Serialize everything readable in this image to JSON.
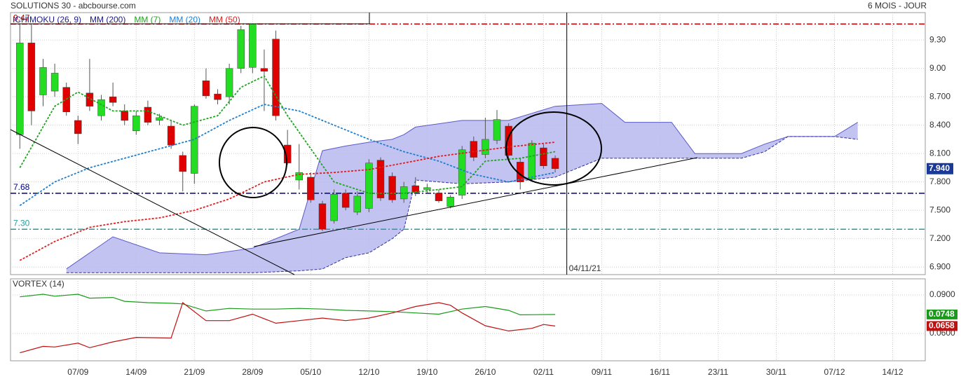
{
  "header": {
    "title": "SOLUTIONS 30 - abcbourse.com",
    "period": "6 MOIS - JOUR"
  },
  "chart_data": [
    {
      "type": "candlestick",
      "xlim": [
        -0.8,
        77.8
      ],
      "ylim": [
        6.82,
        9.59
      ],
      "yticks": [
        {
          "value": 6.9,
          "label": "6.900"
        },
        {
          "value": 7.2,
          "label": "7.200"
        },
        {
          "value": 7.5,
          "label": "7.500"
        },
        {
          "value": 7.8,
          "label": "7.800"
        },
        {
          "value": 8.1,
          "label": "8.100"
        },
        {
          "value": 8.4,
          "label": "8.400"
        },
        {
          "value": 8.7,
          "label": "8.700"
        },
        {
          "value": 9,
          "label": "9.00"
        },
        {
          "value": 9.3,
          "label": "9.30"
        }
      ],
      "grid": true,
      "up_color": "#22dd22",
      "down_color": "#e00000",
      "x": [
        0,
        1,
        2,
        3,
        4,
        5,
        6,
        7,
        8,
        9,
        10,
        11,
        12,
        13,
        14,
        15,
        16,
        17,
        18,
        19,
        20,
        21,
        22,
        23,
        24,
        25,
        26,
        27,
        28,
        29,
        30,
        31,
        32,
        33,
        34,
        35,
        36,
        37,
        38,
        39,
        40,
        41,
        42,
        43,
        44,
        45,
        46
      ],
      "open": [
        8.3,
        9.27,
        8.72,
        8.76,
        8.8,
        8.45,
        8.74,
        8.5,
        8.7,
        8.55,
        8.34,
        8.59,
        8.45,
        8.39,
        8.08,
        7.89,
        8.87,
        8.73,
        8.7,
        9.0,
        9.01,
        9.0,
        9.31,
        8.19,
        7.82,
        7.85,
        7.57,
        7.39,
        7.68,
        7.48,
        7.52,
        8.03,
        7.86,
        7.62,
        7.76,
        7.72,
        7.68,
        7.54,
        7.66,
        8.23,
        8.09,
        8.24,
        8.39,
        8.01,
        7.83,
        8.16,
        8.05
      ],
      "high": [
        9.47,
        9.47,
        9.1,
        9.05,
        8.85,
        8.5,
        9.1,
        8.72,
        8.85,
        8.62,
        8.55,
        8.66,
        8.52,
        8.45,
        8.12,
        8.62,
        9.0,
        8.78,
        9.05,
        9.45,
        9.47,
        9.2,
        9.4,
        8.35,
        8.2,
        7.9,
        7.6,
        7.72,
        7.72,
        7.7,
        8.04,
        8.06,
        7.9,
        7.8,
        7.85,
        7.78,
        7.72,
        7.66,
        8.18,
        8.28,
        8.48,
        8.56,
        8.42,
        8.05,
        8.24,
        8.2,
        8.08
      ],
      "low": [
        8.15,
        8.4,
        8.6,
        8.7,
        8.5,
        8.2,
        8.55,
        8.45,
        8.6,
        8.4,
        8.3,
        8.4,
        8.4,
        8.15,
        7.7,
        7.78,
        8.68,
        8.62,
        8.62,
        8.95,
        8.95,
        8.55,
        8.45,
        7.98,
        7.72,
        7.58,
        7.28,
        7.36,
        7.5,
        7.45,
        7.48,
        7.6,
        7.58,
        7.58,
        7.65,
        7.68,
        7.58,
        7.52,
        7.62,
        8.02,
        8.05,
        8.2,
        8.05,
        7.72,
        7.8,
        7.94,
        7.9
      ],
      "close": [
        9.27,
        8.55,
        9.01,
        8.95,
        8.54,
        8.31,
        8.6,
        8.67,
        8.64,
        8.45,
        8.5,
        8.43,
        8.48,
        8.19,
        7.91,
        8.6,
        8.71,
        8.67,
        9.0,
        9.41,
        9.47,
        8.97,
        8.5,
        8.0,
        7.9,
        7.61,
        7.3,
        7.67,
        7.53,
        7.65,
        8.0,
        7.63,
        7.61,
        7.75,
        7.69,
        7.74,
        7.6,
        7.64,
        8.14,
        8.06,
        8.25,
        8.46,
        8.08,
        7.8,
        8.21,
        7.97,
        7.94
      ],
      "last_label": "7.940",
      "last_color": "#1a3a9a",
      "cloud": {
        "name": "ICHIMOKU (26, 9)",
        "color": "#1a1a8c",
        "fill": "#b8b8f0",
        "x": [
          4,
          8,
          12,
          16,
          20,
          24,
          26,
          28,
          30,
          32,
          33,
          34,
          38,
          42,
          46,
          50,
          52,
          56,
          58,
          62,
          64,
          66,
          70,
          72
        ],
        "top": [
          6.88,
          7.22,
          7.05,
          7.03,
          7.1,
          7.3,
          8.13,
          8.18,
          8.22,
          8.25,
          8.3,
          8.38,
          8.45,
          8.45,
          8.6,
          8.63,
          8.43,
          8.43,
          8.1,
          8.1,
          8.2,
          8.28,
          8.28,
          8.43
        ],
        "bottom": [
          6.84,
          6.84,
          6.84,
          6.84,
          6.84,
          6.86,
          6.88,
          7.0,
          7.05,
          7.2,
          7.3,
          7.82,
          7.78,
          7.8,
          7.85,
          8.05,
          8.05,
          8.05,
          8.05,
          8.05,
          8.12,
          8.28,
          8.28,
          8.25
        ]
      },
      "legend_only": {
        "name": "MM (200)",
        "color": "#1a1a8c"
      },
      "series": [
        {
          "name": "MM (7)",
          "color": "#1fa51f",
          "x": [
            0,
            3,
            5,
            8,
            11,
            14,
            17,
            19,
            21,
            23,
            25,
            27,
            30,
            33,
            36,
            38,
            40,
            43,
            46
          ],
          "values": [
            7.95,
            8.6,
            8.75,
            8.55,
            8.55,
            8.4,
            8.5,
            8.8,
            8.92,
            8.5,
            8.15,
            7.8,
            7.68,
            7.68,
            7.72,
            7.75,
            8.02,
            8.05,
            8.12
          ]
        },
        {
          "name": "MM (20)",
          "color": "#1e7fd0",
          "x": [
            0,
            3,
            6,
            9,
            12,
            15,
            18,
            21,
            24,
            27,
            30,
            33,
            36,
            39,
            42,
            46
          ],
          "values": [
            7.55,
            7.8,
            7.95,
            8.05,
            8.15,
            8.25,
            8.45,
            8.62,
            8.55,
            8.4,
            8.25,
            8.12,
            8.02,
            7.88,
            7.8,
            7.9
          ]
        },
        {
          "name": "MM (50)",
          "color": "#e02020",
          "x": [
            0,
            3,
            6,
            9,
            12,
            15,
            18,
            21,
            24,
            27,
            30,
            33,
            36,
            39,
            42,
            46
          ],
          "values": [
            6.97,
            7.17,
            7.32,
            7.38,
            7.42,
            7.5,
            7.62,
            7.8,
            7.88,
            7.9,
            7.93,
            8.0,
            8.07,
            8.12,
            8.17,
            8.22
          ]
        }
      ],
      "hlines": [
        {
          "value": 9.47,
          "label": "9.47",
          "color": "#cc0000"
        },
        {
          "value": 7.68,
          "label": "7.68",
          "color": "#000080"
        },
        {
          "value": 7.3,
          "label": "7.30",
          "color": "#2a9aa0"
        }
      ],
      "cursor": {
        "x": 47,
        "label": "04/11/21"
      }
    },
    {
      "type": "line",
      "title": "VORTEX (14)",
      "xlim": [
        -0.8,
        77.8
      ],
      "ylim": [
        0.0388,
        0.1025
      ],
      "yticks": [
        {
          "value": 0.06,
          "label": "0.0600"
        },
        {
          "value": 0.09,
          "label": "0.0900"
        }
      ],
      "xticks": [
        {
          "value": 5,
          "label": "07/09"
        },
        {
          "value": 10,
          "label": "14/09"
        },
        {
          "value": 15,
          "label": "21/09"
        },
        {
          "value": 20,
          "label": "28/09"
        },
        {
          "value": 25,
          "label": "05/10"
        },
        {
          "value": 30,
          "label": "12/10"
        },
        {
          "value": 35,
          "label": "19/10"
        },
        {
          "value": 40,
          "label": "26/10"
        },
        {
          "value": 45,
          "label": "02/11"
        },
        {
          "value": 50,
          "label": "09/11"
        },
        {
          "value": 55,
          "label": "16/11"
        },
        {
          "value": 60,
          "label": "23/11"
        },
        {
          "value": 65,
          "label": "30/11"
        },
        {
          "value": 70,
          "label": "07/12"
        },
        {
          "value": 75,
          "label": "14/12"
        }
      ],
      "grid": true,
      "series": [
        {
          "color": "#1a9a1a",
          "x": [
            0,
            2,
            3,
            5,
            6,
            8,
            9,
            11,
            13,
            14,
            16,
            18,
            20,
            22,
            24,
            26,
            28,
            30,
            32,
            34,
            36,
            38,
            40,
            42,
            43,
            46
          ],
          "values": [
            0.0885,
            0.0905,
            0.089,
            0.0905,
            0.0875,
            0.088,
            0.085,
            0.084,
            0.0835,
            0.083,
            0.0775,
            0.0795,
            0.079,
            0.079,
            0.0795,
            0.079,
            0.078,
            0.0775,
            0.077,
            0.076,
            0.075,
            0.079,
            0.081,
            0.078,
            0.0745,
            0.0748
          ]
        },
        {
          "color": "#c01010",
          "x": [
            0,
            2,
            3,
            5,
            6,
            8,
            10,
            13,
            14,
            16,
            18,
            20,
            22,
            24,
            26,
            28,
            30,
            32,
            34,
            36,
            37,
            38,
            40,
            42,
            44,
            45,
            46
          ],
          "values": [
            0.045,
            0.05,
            0.0495,
            0.0525,
            0.049,
            0.0535,
            0.057,
            0.0565,
            0.084,
            0.07,
            0.07,
            0.075,
            0.068,
            0.07,
            0.072,
            0.07,
            0.072,
            0.076,
            0.081,
            0.084,
            0.082,
            0.076,
            0.066,
            0.062,
            0.064,
            0.067,
            0.0658
          ]
        }
      ]
    }
  ]
}
